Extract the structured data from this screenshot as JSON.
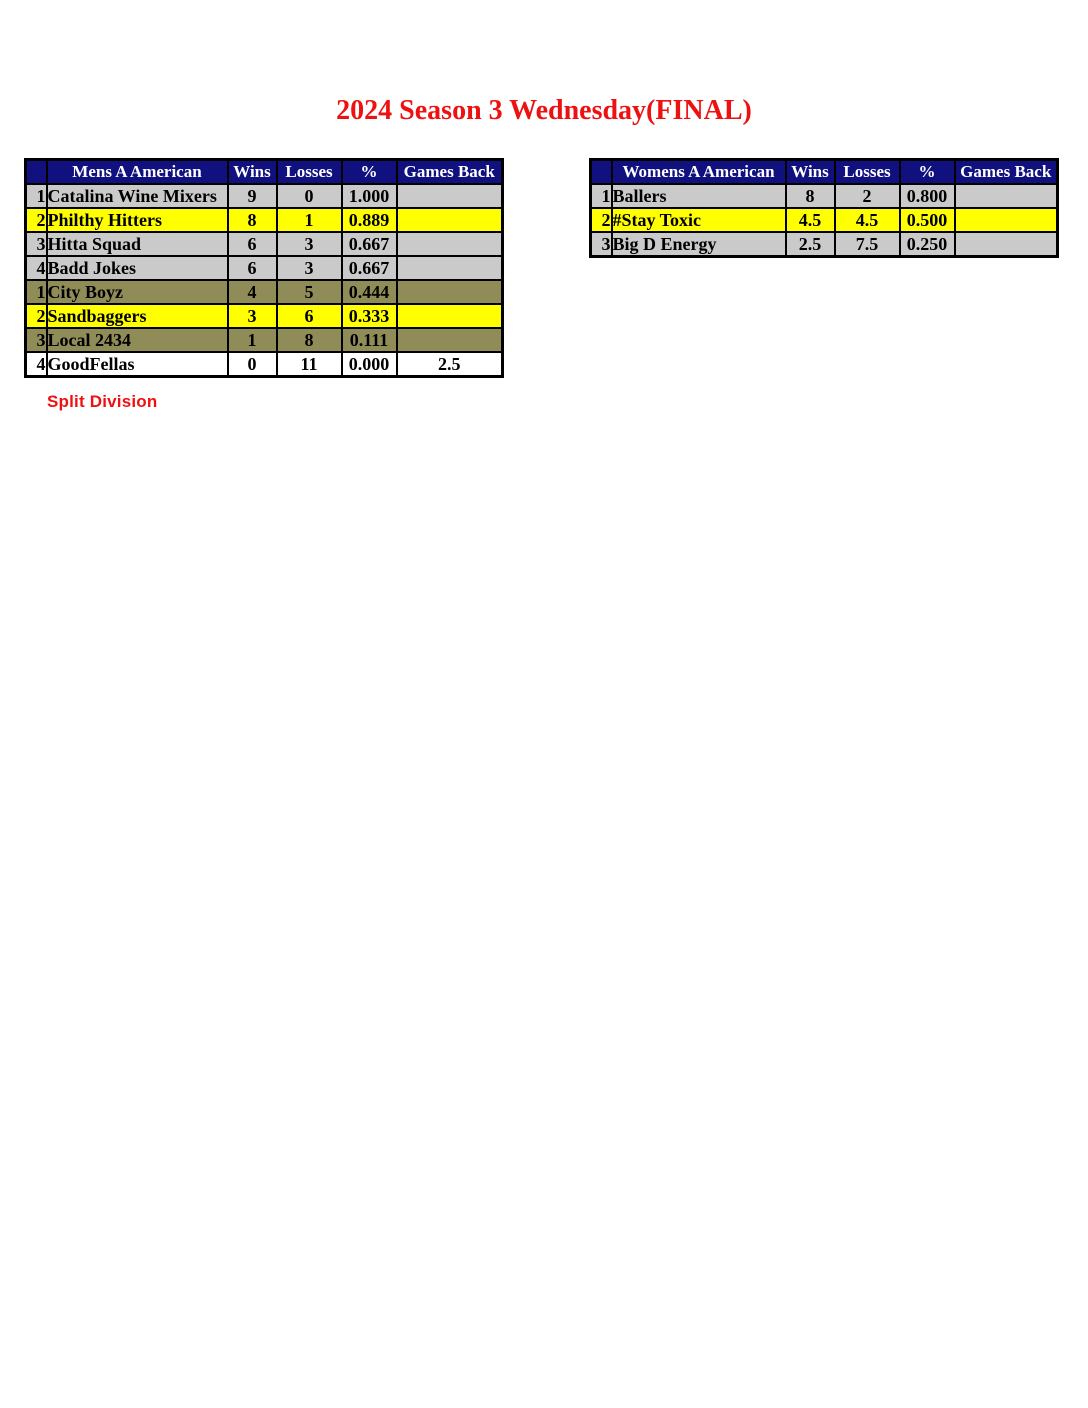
{
  "title": "2024 Season 3 Wednesday(FINAL)",
  "footnote": "Split Division",
  "colors": {
    "header_bg": "#10107E",
    "header_text": "#FFFFFF",
    "row_gray": "#CACACA",
    "row_yellow": "#FFFF00",
    "row_olive": "#908C58",
    "row_white": "#FFFFFF",
    "accent_red": "#EE1111"
  },
  "mens_table": {
    "header": {
      "division": "Mens A American",
      "wins": "Wins",
      "losses": "Losses",
      "pct": "%",
      "games_back": "Games Back"
    },
    "rows": [
      {
        "rank": "1",
        "team": "Catalina Wine Mixers",
        "wins": "9",
        "losses": "0",
        "pct": "1.000",
        "games_back": "",
        "color": "gray"
      },
      {
        "rank": "2",
        "team": "Philthy Hitters",
        "wins": "8",
        "losses": "1",
        "pct": "0.889",
        "games_back": "",
        "color": "yellow"
      },
      {
        "rank": "3",
        "team": "Hitta Squad",
        "wins": "6",
        "losses": "3",
        "pct": "0.667",
        "games_back": "",
        "color": "gray"
      },
      {
        "rank": "4",
        "team": "Badd Jokes",
        "wins": "6",
        "losses": "3",
        "pct": "0.667",
        "games_back": "",
        "color": "gray"
      },
      {
        "rank": "1",
        "team": "City Boyz",
        "wins": "4",
        "losses": "5",
        "pct": "0.444",
        "games_back": "",
        "color": "olive"
      },
      {
        "rank": "2",
        "team": "Sandbaggers",
        "wins": "3",
        "losses": "6",
        "pct": "0.333",
        "games_back": "",
        "color": "yellow"
      },
      {
        "rank": "3",
        "team": "Local 2434",
        "wins": "1",
        "losses": "8",
        "pct": "0.111",
        "games_back": "",
        "color": "olive"
      },
      {
        "rank": "4",
        "team": "GoodFellas",
        "wins": "0",
        "losses": "11",
        "pct": "0.000",
        "games_back": "2.5",
        "color": "white"
      }
    ]
  },
  "womens_table": {
    "header": {
      "division": "Womens A American",
      "wins": "Wins",
      "losses": "Losses",
      "pct": "%",
      "games_back": "Games Back"
    },
    "rows": [
      {
        "rank": "1",
        "team": "Ballers",
        "wins": "8",
        "losses": "2",
        "pct": "0.800",
        "games_back": "",
        "color": "gray"
      },
      {
        "rank": "2",
        "team": "#Stay Toxic",
        "wins": "4.5",
        "losses": "4.5",
        "pct": "0.500",
        "games_back": "",
        "color": "yellow"
      },
      {
        "rank": "3",
        "team": "Big D Energy",
        "wins": "2.5",
        "losses": "7.5",
        "pct": "0.250",
        "games_back": "",
        "color": "gray"
      }
    ]
  }
}
